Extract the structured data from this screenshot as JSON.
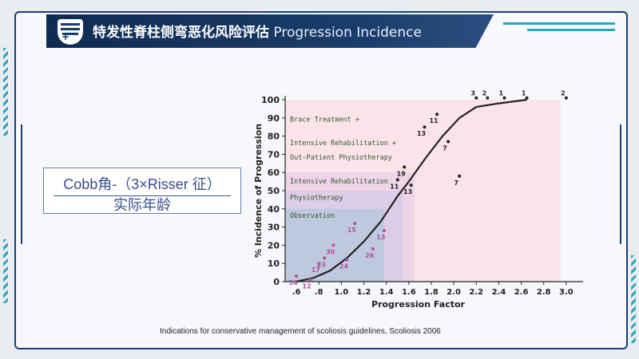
{
  "header": {
    "title_zh": "特发性脊柱侧弯恶化风险评估",
    "title_en": "Progression Incidence"
  },
  "formula": {
    "numerator": "Cobb角-（3×Risser 征）",
    "denominator": "实际年龄"
  },
  "citation": "Indications for conservative management of scoliosis guidelines, Scoliosis 2006",
  "colors": {
    "header": "#1b3d6b",
    "accent": "#2aa7b8",
    "zone_brace": "#fbe3ea",
    "zone_rehab": "#ecd2e8",
    "zone_physio": "#d9cbe5",
    "zone_observation": "#b9c7dc",
    "curve": "#222222",
    "point_labels": "#b5519a"
  },
  "chart_data": {
    "type": "scatter",
    "xlabel": "Progression Factor",
    "ylabel": "% Incidence of Progression",
    "xlim": [
      0.5,
      3.15
    ],
    "ylim": [
      0,
      100
    ],
    "x_ticks": [
      ".6",
      ".8",
      "1.0",
      "1.2",
      "1.4",
      "1.6",
      "1.8",
      "2.0",
      "2.2",
      "2.4",
      "2.6",
      "2.8",
      "3.0"
    ],
    "x_tick_values": [
      0.6,
      0.8,
      1.0,
      1.2,
      1.4,
      1.6,
      1.8,
      2.0,
      2.2,
      2.4,
      2.6,
      2.8,
      3.0
    ],
    "y_ticks": [
      0,
      10,
      20,
      30,
      40,
      50,
      60,
      70,
      80,
      90,
      100
    ],
    "zones": [
      {
        "labels": [
          "Brace Treatment +",
          "Intensive Rehabilitation +",
          "Out-Patient Physiotherapy"
        ],
        "x_max": 2.95,
        "y_max": 100
      },
      {
        "labels": [
          "Intensive Rehabilitation"
        ],
        "x_max": 1.65,
        "y_max": 60
      },
      {
        "labels": [
          "Physiotherapy"
        ],
        "x_max": 1.55,
        "y_max": 50
      },
      {
        "labels": [
          "Observation"
        ],
        "x_max": 1.38,
        "y_max": 40
      }
    ],
    "points": [
      {
        "x": 0.6,
        "y": 3,
        "label": "14"
      },
      {
        "x": 0.72,
        "y": 1,
        "label": "12"
      },
      {
        "x": 0.8,
        "y": 10,
        "label": "17"
      },
      {
        "x": 0.85,
        "y": 13,
        "label": "23"
      },
      {
        "x": 0.93,
        "y": 20,
        "label": "30"
      },
      {
        "x": 1.05,
        "y": 12,
        "label": "24"
      },
      {
        "x": 1.12,
        "y": 32,
        "label": "15"
      },
      {
        "x": 1.28,
        "y": 18,
        "label": "26"
      },
      {
        "x": 1.38,
        "y": 28,
        "label": "13"
      },
      {
        "x": 1.5,
        "y": 56,
        "label": "11"
      },
      {
        "x": 1.56,
        "y": 63,
        "label": "19"
      },
      {
        "x": 1.62,
        "y": 53,
        "label": "13"
      },
      {
        "x": 1.74,
        "y": 85,
        "label": "13"
      },
      {
        "x": 1.85,
        "y": 92,
        "label": "11"
      },
      {
        "x": 1.95,
        "y": 77,
        "label": "7"
      },
      {
        "x": 2.05,
        "y": 58,
        "label": "7"
      },
      {
        "x": 2.2,
        "y": 101,
        "label": "3"
      },
      {
        "x": 2.3,
        "y": 101,
        "label": "2"
      },
      {
        "x": 2.45,
        "y": 101,
        "label": "1"
      },
      {
        "x": 2.65,
        "y": 101,
        "label": "1"
      },
      {
        "x": 3.0,
        "y": 101,
        "label": "2"
      }
    ],
    "curve": [
      [
        0.6,
        0
      ],
      [
        0.75,
        2
      ],
      [
        0.9,
        6
      ],
      [
        1.05,
        13
      ],
      [
        1.2,
        22
      ],
      [
        1.35,
        33
      ],
      [
        1.5,
        47
      ],
      [
        1.6,
        55
      ],
      [
        1.75,
        68
      ],
      [
        1.9,
        80
      ],
      [
        2.05,
        90
      ],
      [
        2.2,
        96
      ],
      [
        2.4,
        98
      ],
      [
        2.65,
        100
      ]
    ]
  }
}
